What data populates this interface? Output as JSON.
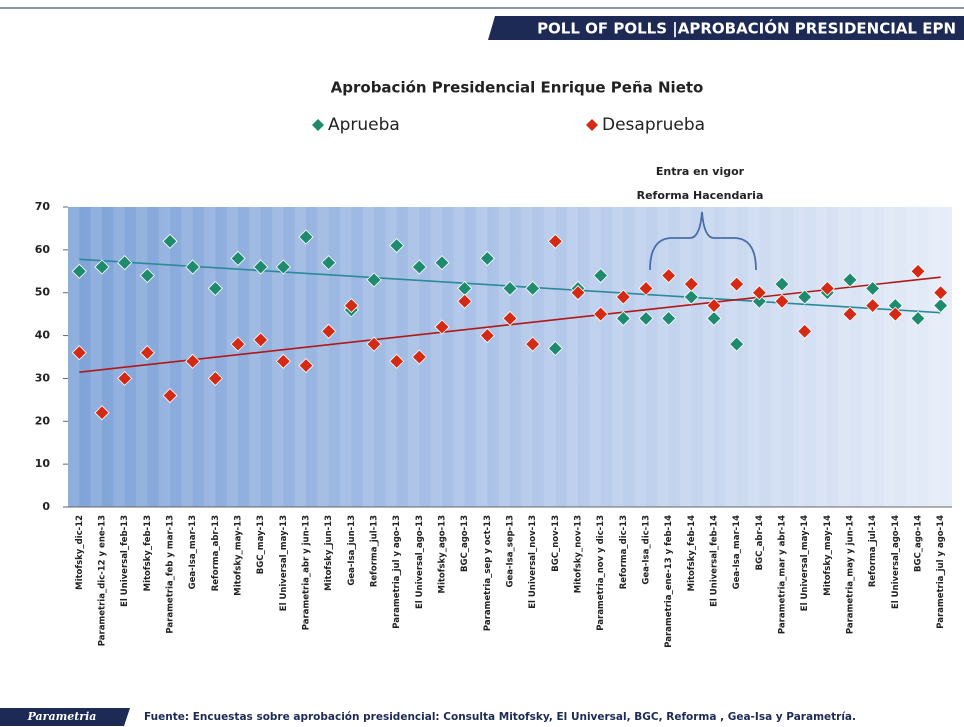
{
  "header": "POLL OF POLLS |APROBACIÓN PRESIDENCIAL EPN",
  "chart_data": {
    "type": "scatter",
    "title": "Aprobación Presidencial Enrique Peña Nieto",
    "annotation": [
      "Entra en vigor",
      "Reforma Hacendaria"
    ],
    "categories": [
      "Mitofsky_dic-12",
      "Parametria_dic-12 y ene-13",
      "El Universal_feb-13",
      "Mitofsky_feb-13",
      "Parametria_feb y mar-13",
      "Gea-Isa_mar-13",
      "Reforma_abr-13",
      "Mitofsky_may-13",
      "BGC_may-13",
      "El Universal_may-13",
      "Parametria_abr y jun-13",
      "Mitofsky_jun-13",
      "Gea-Isa_jun-13",
      "Reforma_jul-13",
      "Parametria_jul y ago-13",
      "El Universal_ago-13",
      "Mitofsky_ago-13",
      "BGC_ago-13",
      "Parametria_sep y oct-13",
      "Gea-Isa_sep-13",
      "El Universal_nov-13",
      "BGC_nov-13",
      "Mitofsky_nov-13",
      "Parametria_nov y dic-13",
      "Reforma_dic-13",
      "Gea-Isa_dic-13",
      "Parametria_ene-13 y feb-14",
      "Mitofsky_feb-14",
      "El Universal_feb-14",
      "Gea-Isa_mar-14",
      "BGC_abr-14",
      "Parametria_mar y abr-14",
      "El Universal_may-14",
      "Mitofsky_may-14",
      "Parametria_may y jun-14",
      "Reforma_jul-14",
      "El Universal_ago-14",
      "BGC_ago-14",
      "Parametria_jul y ago-14"
    ],
    "series": [
      {
        "name": "Aprueba",
        "color": "#1e8a6e",
        "trend_color": "#2a8a9a",
        "values": [
          55,
          56,
          57,
          54,
          62,
          56,
          51,
          58,
          56,
          56,
          63,
          57,
          46,
          53,
          61,
          56,
          57,
          51,
          58,
          51,
          51,
          37,
          51,
          54,
          44,
          44,
          44,
          49,
          44,
          38,
          48,
          52,
          49,
          50,
          53,
          51,
          47,
          44,
          47
        ]
      },
      {
        "name": "Desaprueba",
        "color": "#d42a14",
        "trend_color": "#b01818",
        "values": [
          36,
          22,
          30,
          36,
          26,
          34,
          30,
          38,
          39,
          34,
          33,
          41,
          47,
          38,
          34,
          35,
          42,
          48,
          40,
          44,
          38,
          62,
          50,
          45,
          49,
          51,
          54,
          52,
          47,
          52,
          50,
          48,
          41,
          51,
          45,
          47,
          45,
          55,
          50
        ]
      }
    ],
    "ylim": [
      0,
      70
    ],
    "yticks": [
      0,
      10,
      20,
      30,
      40,
      50,
      60,
      70
    ]
  },
  "footer": {
    "logo": "Parametria",
    "source": "Fuente: Encuestas sobre aprobación presidencial: Consulta Mitofsky, El Universal, BGC, Reforma , Gea-Isa y Parametría."
  }
}
